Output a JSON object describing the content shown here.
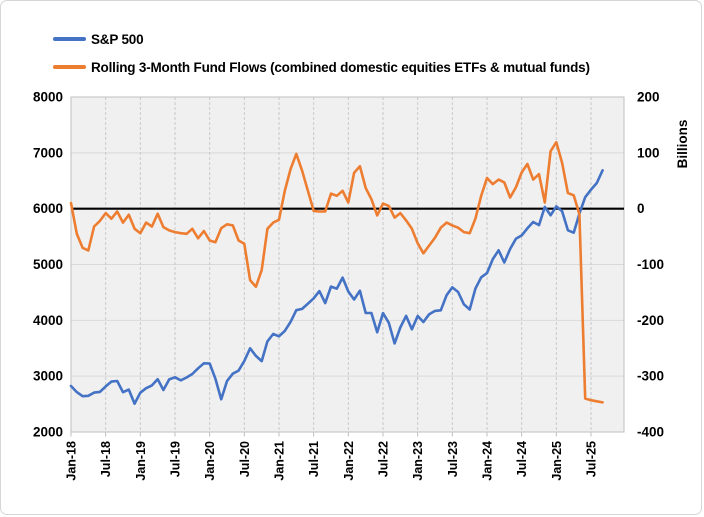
{
  "legend": {
    "items": [
      {
        "label": "S&P 500",
        "color": "#4472C4"
      },
      {
        "label": "Rolling 3-Month Fund Flows (combined domestic equities ETFs & mutual funds)",
        "color": "#ED7D31"
      }
    ]
  },
  "chart_data": {
    "type": "line",
    "x_start": "Jan-18",
    "x_tick_labels": [
      "Jan-18",
      "Jul-18",
      "Jan-19",
      "Jul-19",
      "Jan-20",
      "Jul-20",
      "Jan-21",
      "Jul-21",
      "Jan-22",
      "Jul-22",
      "Jan-23",
      "Jul-23",
      "Jan-24",
      "Jul-24",
      "Jan-25",
      "Jul-25"
    ],
    "x_tick_interval_months": 6,
    "left_axis": {
      "min": 2000,
      "max": 8000,
      "step": 1000,
      "ticks": [
        8000,
        7000,
        6000,
        5000,
        4000,
        3000,
        2000
      ]
    },
    "right_axis": {
      "min": -400,
      "max": 200,
      "step": 100,
      "ticks": [
        200,
        100,
        0,
        -100,
        -200,
        -300,
        -400
      ],
      "title": "Billions"
    },
    "zero_reference_line": {
      "axis": "right",
      "value": 0,
      "color": "#000000"
    },
    "grid": {
      "horizontal": true,
      "vertical_dashed": true
    },
    "legend_position": "top-left",
    "series": [
      {
        "name": "S&P 500",
        "axis": "left",
        "color": "#4472C4",
        "values": [
          2824,
          2714,
          2641,
          2648,
          2705,
          2718,
          2816,
          2902,
          2914,
          2712,
          2760,
          2507,
          2704,
          2784,
          2834,
          2946,
          2752,
          2942,
          2980,
          2926,
          2977,
          3038,
          3141,
          3231,
          3226,
          2954,
          2585,
          2912,
          3044,
          3100,
          3271,
          3500,
          3363,
          3270,
          3622,
          3756,
          3714,
          3811,
          3973,
          4181,
          4204,
          4298,
          4395,
          4523,
          4308,
          4605,
          4567,
          4766,
          4516,
          4374,
          4530,
          4132,
          4132,
          3785,
          4130,
          3955,
          3586,
          3872,
          4080,
          3840,
          4077,
          3970,
          4109,
          4169,
          4180,
          4450,
          4589,
          4508,
          4288,
          4194,
          4568,
          4770,
          4846,
          5096,
          5254,
          5036,
          5278,
          5460,
          5522,
          5648,
          5762,
          5705,
          6032,
          5882,
          6041,
          5955,
          5612,
          5569,
          5912,
          6205,
          6339,
          6460,
          6688
        ]
      },
      {
        "name": "Rolling 3-Month Fund Flows (combined domestic equities ETFs & mutual funds)",
        "axis": "right",
        "color": "#ED7D31",
        "values": [
          10,
          -45,
          -70,
          -75,
          -32,
          -22,
          -8,
          -18,
          -5,
          -25,
          -11,
          -36,
          -44,
          -25,
          -32,
          -9,
          -33,
          -39,
          -42,
          -44,
          -45,
          -36,
          -53,
          -40,
          -57,
          -60,
          -35,
          -28,
          -30,
          -57,
          -63,
          -128,
          -140,
          -110,
          -36,
          -25,
          -20,
          32,
          71,
          98,
          68,
          32,
          -4,
          -5,
          -5,
          27,
          23,
          32,
          11,
          64,
          76,
          37,
          17,
          -12,
          9,
          5,
          -16,
          -8,
          -21,
          -36,
          -62,
          -80,
          -66,
          -52,
          -34,
          -25,
          -30,
          -34,
          -42,
          -44,
          -18,
          23,
          55,
          44,
          52,
          47,
          20,
          38,
          65,
          80,
          52,
          62,
          11,
          103,
          119,
          82,
          28,
          24,
          -10,
          -340,
          -343,
          -345,
          -347
        ]
      }
    ]
  },
  "style": {
    "plot_bg": "#f0f0f0",
    "grid_color": "#d9d9d9",
    "vgrid_color": "#c9c9c9",
    "plot_border": "#bfbfbf",
    "axis_text_color": "#000000"
  }
}
